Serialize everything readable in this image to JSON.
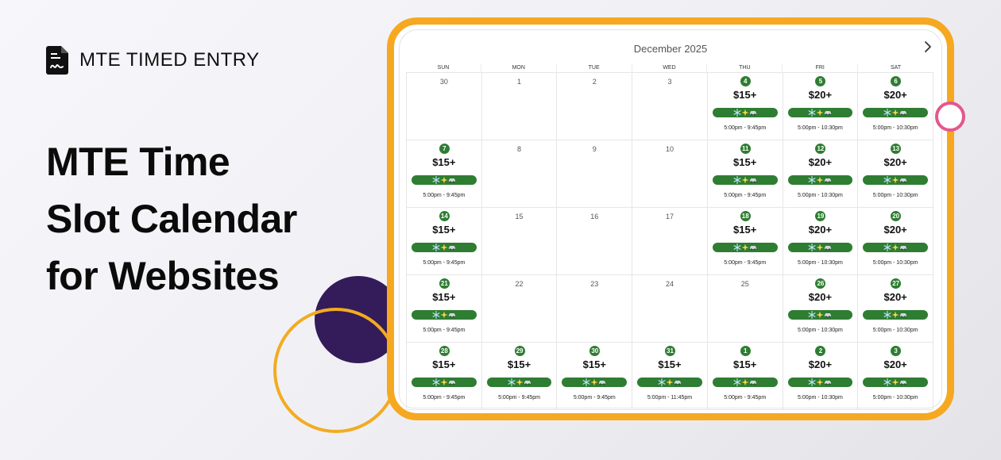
{
  "brand": {
    "name": "MTE TIMED ENTRY",
    "icon": "document-signature-icon"
  },
  "headline": {
    "line1": "MTE Time",
    "line2": "Slot Calendar",
    "line3": "for Websites"
  },
  "calendar": {
    "month_label": "December 2025",
    "next_icon": "chevron-right-icon",
    "weekdays": [
      "SUN",
      "MON",
      "TUE",
      "WED",
      "THU",
      "FRI",
      "SAT"
    ],
    "event_icons": [
      "snowflake-icon",
      "sparkles-icon",
      "car-icon"
    ],
    "event_color": "#2e7d32",
    "weeks": [
      [
        {
          "day": "30",
          "available": false
        },
        {
          "day": "1",
          "available": false
        },
        {
          "day": "2",
          "available": false
        },
        {
          "day": "3",
          "available": false
        },
        {
          "day": "4",
          "available": true,
          "price": "$15+",
          "hours": "5:00pm - 9:45pm"
        },
        {
          "day": "5",
          "available": true,
          "price": "$20+",
          "hours": "5:00pm - 10:30pm"
        },
        {
          "day": "6",
          "available": true,
          "price": "$20+",
          "hours": "5:00pm - 10:30pm"
        }
      ],
      [
        {
          "day": "7",
          "available": true,
          "price": "$15+",
          "hours": "5:00pm - 9:45pm"
        },
        {
          "day": "8",
          "available": false
        },
        {
          "day": "9",
          "available": false
        },
        {
          "day": "10",
          "available": false
        },
        {
          "day": "11",
          "available": true,
          "price": "$15+",
          "hours": "5:00pm - 9:45pm"
        },
        {
          "day": "12",
          "available": true,
          "price": "$20+",
          "hours": "5:00pm - 10:30pm"
        },
        {
          "day": "13",
          "available": true,
          "price": "$20+",
          "hours": "5:00pm - 10:30pm"
        }
      ],
      [
        {
          "day": "14",
          "available": true,
          "price": "$15+",
          "hours": "5:00pm - 9:45pm"
        },
        {
          "day": "15",
          "available": false
        },
        {
          "day": "16",
          "available": false
        },
        {
          "day": "17",
          "available": false
        },
        {
          "day": "18",
          "available": true,
          "price": "$15+",
          "hours": "5:00pm - 9:45pm"
        },
        {
          "day": "19",
          "available": true,
          "price": "$20+",
          "hours": "5:00pm - 10:30pm"
        },
        {
          "day": "20",
          "available": true,
          "price": "$20+",
          "hours": "5:00pm - 10:30pm"
        }
      ],
      [
        {
          "day": "21",
          "available": true,
          "price": "$15+",
          "hours": "5:00pm - 9:45pm"
        },
        {
          "day": "22",
          "available": false
        },
        {
          "day": "23",
          "available": false
        },
        {
          "day": "24",
          "available": false
        },
        {
          "day": "25",
          "available": false
        },
        {
          "day": "26",
          "available": true,
          "price": "$20+",
          "hours": "5:00pm - 10:30pm"
        },
        {
          "day": "27",
          "available": true,
          "price": "$20+",
          "hours": "5:00pm - 10:30pm"
        }
      ],
      [
        {
          "day": "28",
          "available": true,
          "price": "$15+",
          "hours": "5:00pm - 9:45pm"
        },
        {
          "day": "29",
          "available": true,
          "price": "$15+",
          "hours": "5:00pm - 9:45pm"
        },
        {
          "day": "30",
          "available": true,
          "price": "$15+",
          "hours": "5:00pm - 9:45pm"
        },
        {
          "day": "31",
          "available": true,
          "price": "$15+",
          "hours": "5:00pm - 11:45pm"
        },
        {
          "day": "1",
          "available": true,
          "price": "$15+",
          "hours": "5:00pm - 9:45pm"
        },
        {
          "day": "2",
          "available": true,
          "price": "$20+",
          "hours": "5:00pm - 10:30pm"
        },
        {
          "day": "3",
          "available": true,
          "price": "$20+",
          "hours": "5:00pm - 10:30pm"
        }
      ]
    ]
  },
  "colors": {
    "accent": "#f6a821",
    "purple": "#341b59",
    "pink": "#e4578d",
    "green": "#2e7d32"
  }
}
